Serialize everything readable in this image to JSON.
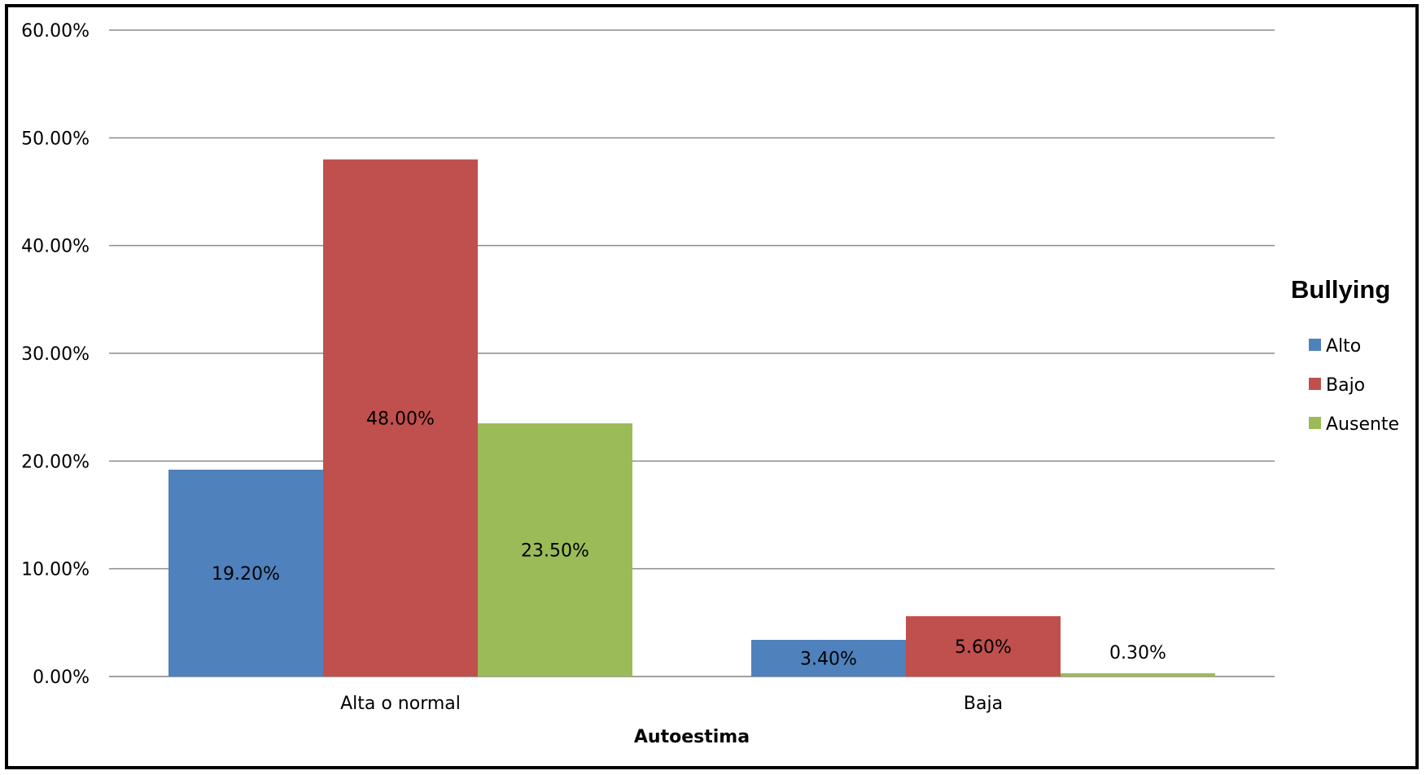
{
  "chart_data": {
    "type": "bar",
    "categories": [
      "Alta o normal",
      "Baja"
    ],
    "series": [
      {
        "name": "Alto",
        "values": [
          19.2,
          3.4
        ],
        "color": "#4F81BD"
      },
      {
        "name": "Bajo",
        "values": [
          48.0,
          5.6
        ],
        "color": "#C0504D"
      },
      {
        "name": "Ausente",
        "values": [
          23.5,
          0.3
        ],
        "color": "#9BBB59"
      }
    ],
    "data_labels": [
      [
        "19.20%",
        "3.40%"
      ],
      [
        "48.00%",
        "5.60%"
      ],
      [
        "23.50%",
        "0.30%"
      ]
    ],
    "xlabel": "Autoestima",
    "ylabel": "",
    "ylim": [
      0,
      60
    ],
    "y_ticks": [
      "0.00%",
      "10.00%",
      "20.00%",
      "30.00%",
      "40.00%",
      "50.00%",
      "60.00%"
    ],
    "legend_title": "Bullying",
    "legend_position": "right",
    "grid": true
  }
}
